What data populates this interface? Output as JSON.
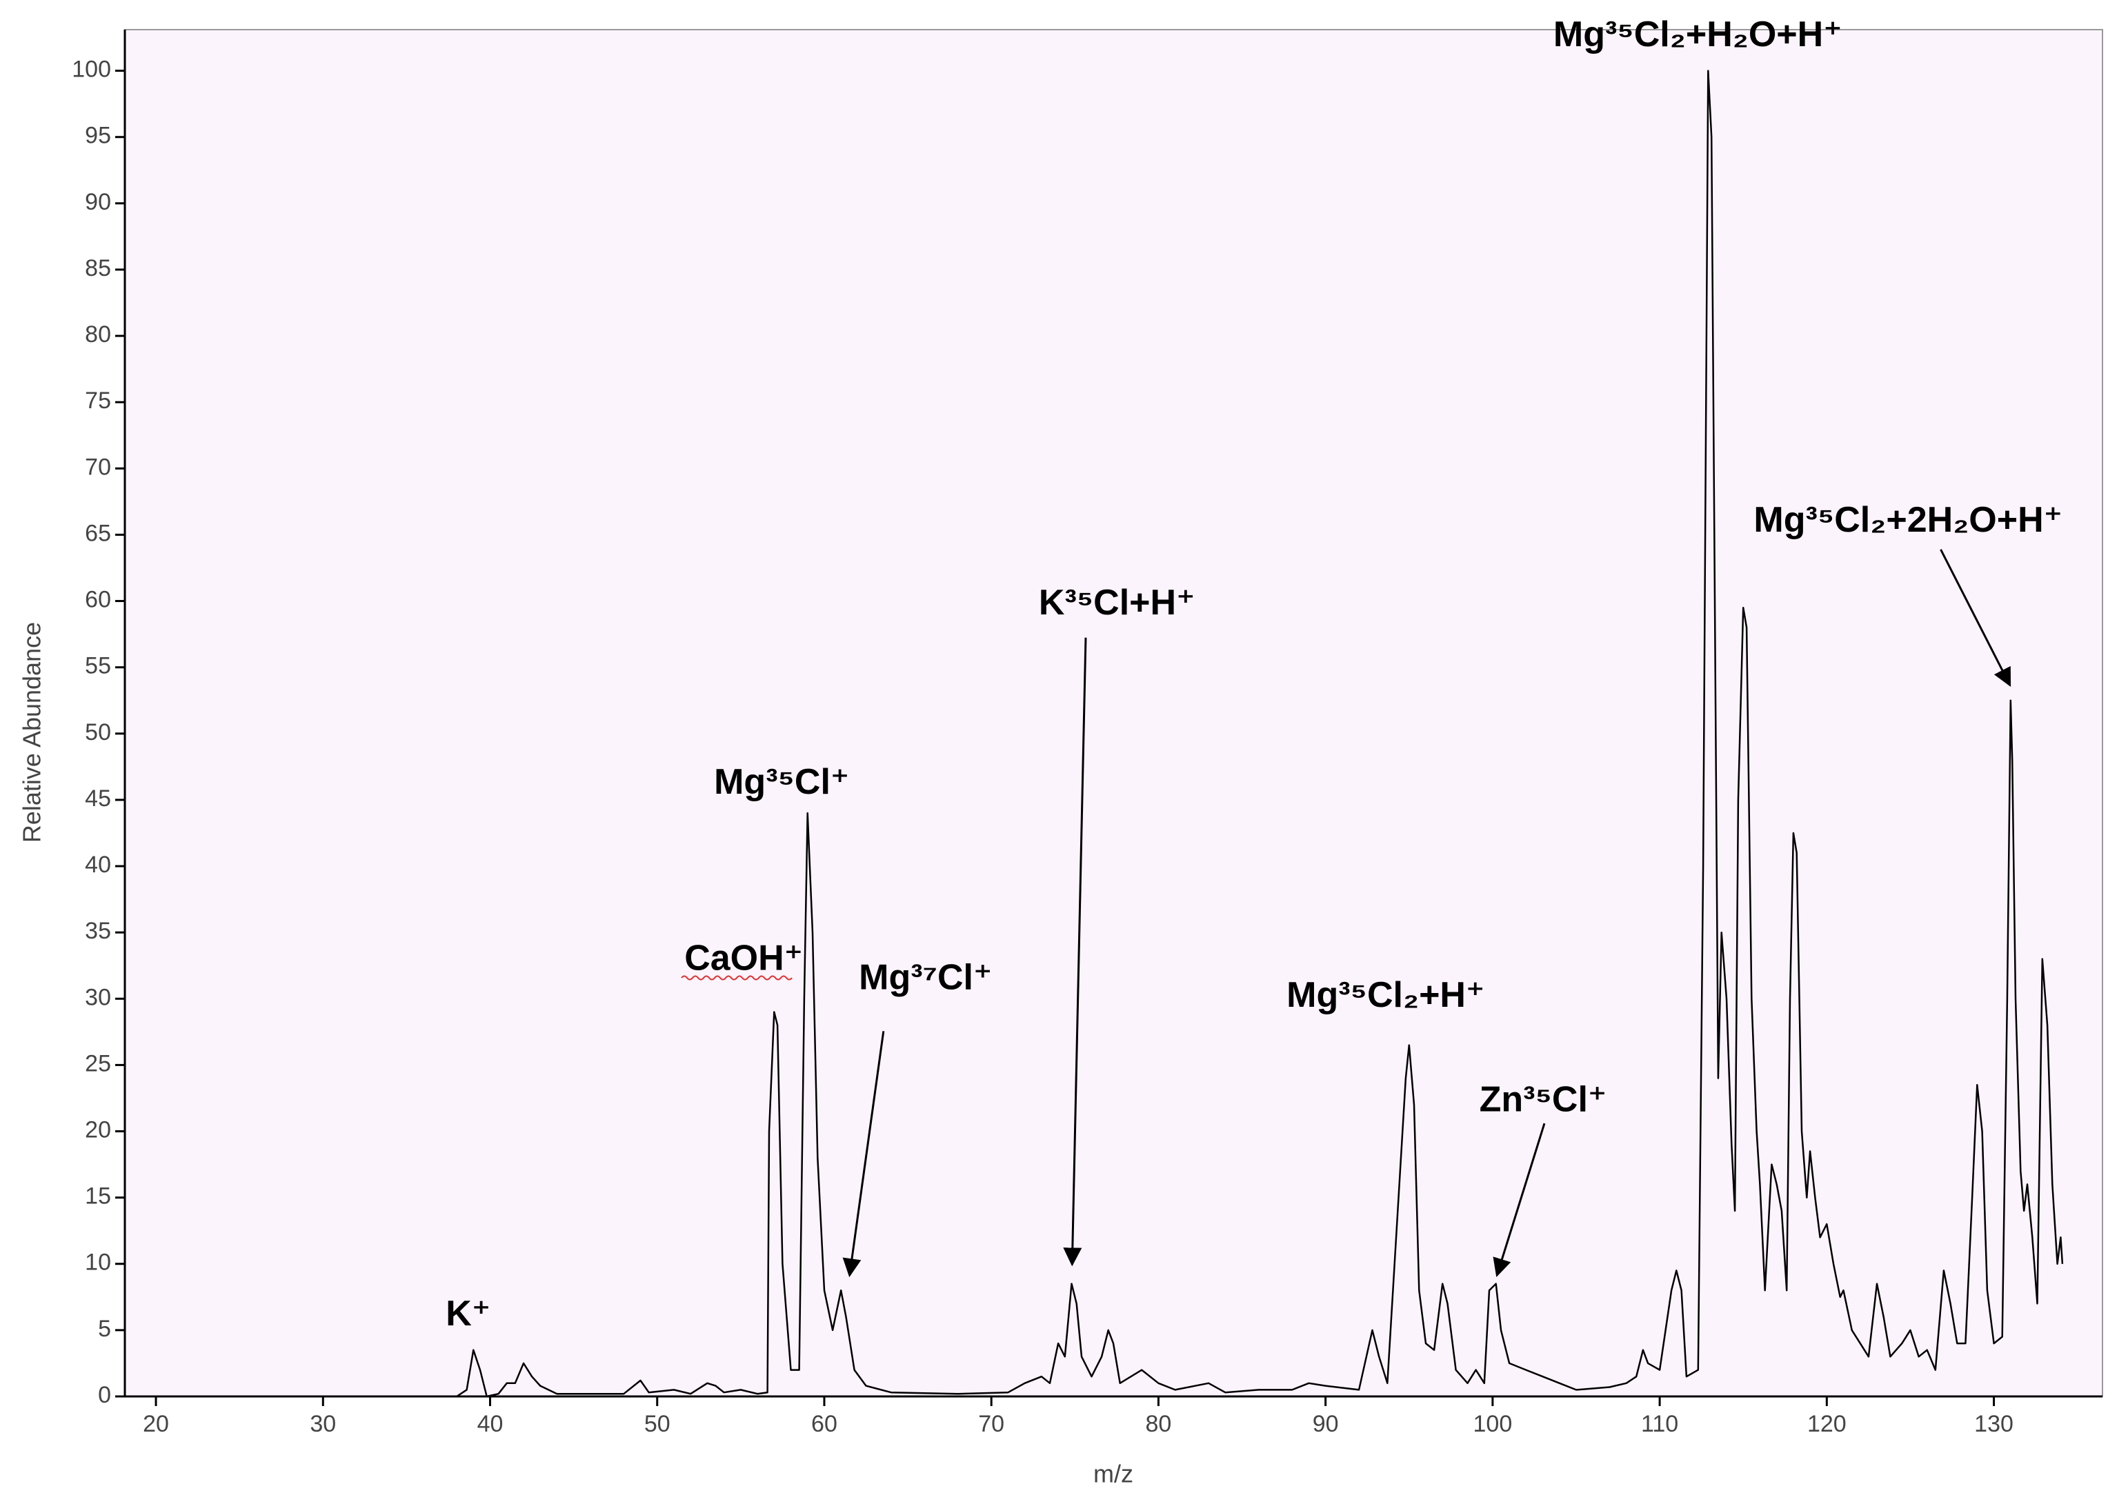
{
  "chart_data": {
    "type": "line",
    "x_label": "m/z",
    "y_label": "Relative Abundance",
    "xlim": [
      18.14,
      136.5
    ],
    "ylim": [
      0,
      103.1
    ],
    "xticks": [
      20,
      30,
      40,
      50,
      60,
      70,
      80,
      90,
      100,
      110,
      120,
      130
    ],
    "yticks": [
      0,
      5,
      10,
      15,
      20,
      25,
      30,
      35,
      40,
      45,
      50,
      55,
      60,
      65,
      70,
      75,
      80,
      85,
      90,
      95,
      100
    ],
    "color": "#000000",
    "background": "#fcf4fc",
    "x": [
      18.5,
      38,
      38.6,
      39,
      39.4,
      39.8,
      40.5,
      41,
      41.5,
      42,
      42.5,
      43,
      44,
      48,
      49,
      49.5,
      51,
      52,
      53,
      53.5,
      54,
      55,
      56,
      56.6,
      56.7,
      57,
      57.2,
      57.5,
      58,
      58.5,
      58.8,
      59,
      59.3,
      59.6,
      60,
      60.5,
      61,
      61.3,
      61.8,
      62.5,
      64,
      68,
      71,
      72,
      73,
      73.5,
      74,
      74.4,
      74.8,
      75.1,
      75.4,
      76,
      76.6,
      77,
      77.3,
      77.7,
      79,
      80,
      81,
      83,
      84,
      86,
      88,
      89,
      90,
      92,
      92.8,
      93.2,
      93.7,
      94.8,
      95,
      95.3,
      95.6,
      96,
      96.5,
      97,
      97.3,
      97.8,
      98.5,
      99,
      99.5,
      99.8,
      100.2,
      100.5,
      101,
      102,
      103,
      104,
      105,
      107,
      108,
      108.6,
      109,
      109.3,
      110,
      110.7,
      111,
      111.3,
      111.6,
      112.3,
      112.6,
      112.9,
      113.1,
      113.3,
      113.5,
      113.7,
      114,
      114.3,
      114.5,
      114.7,
      115,
      115.2,
      115.5,
      115.8,
      116,
      116.3,
      116.7,
      117,
      117.3,
      117.6,
      117.8,
      118,
      118.2,
      118.5,
      118.8,
      119,
      119.3,
      119.6,
      120,
      120.4,
      120.8,
      121,
      121.5,
      122,
      122.5,
      123,
      123.4,
      123.8,
      124.5,
      125,
      125.5,
      126,
      126.5,
      127,
      127.4,
      127.8,
      128.3,
      128.7,
      129,
      129.3,
      129.6,
      130,
      130.5,
      130.8,
      131,
      131.1,
      131.3,
      131.6,
      131.8,
      132,
      132.3,
      132.6,
      132.9,
      133.2,
      133.5,
      133.8,
      134,
      134.1
    ],
    "values": [
      0,
      0,
      0.5,
      3.5,
      2,
      0,
      0.2,
      1,
      1,
      2.5,
      1.5,
      0.8,
      0.2,
      0.2,
      1.2,
      0.3,
      0.5,
      0.2,
      1,
      0.8,
      0.3,
      0.5,
      0.2,
      0.3,
      20,
      29,
      28,
      10,
      2,
      2,
      30,
      44,
      35,
      18,
      8,
      5,
      8,
      6,
      2,
      0.8,
      0.3,
      0.2,
      0.3,
      1,
      1.5,
      1,
      4,
      3,
      8.5,
      7,
      3,
      1.5,
      3,
      5,
      4,
      1,
      2,
      1,
      0.5,
      1,
      0.3,
      0.5,
      0.5,
      1,
      0.8,
      0.5,
      5,
      3,
      1,
      24,
      26.5,
      22,
      8,
      4,
      3.5,
      8.5,
      7,
      2,
      1,
      2,
      1,
      8,
      8.5,
      5,
      2.5,
      2,
      1.5,
      1,
      0.5,
      0.7,
      1,
      1.5,
      3.5,
      2.5,
      2,
      8,
      9.5,
      8,
      1.5,
      2,
      40,
      100,
      95,
      60,
      24,
      35,
      30,
      19,
      14,
      45,
      59.5,
      58,
      30,
      20,
      16,
      8,
      17.5,
      16,
      14,
      8,
      30,
      42.5,
      41,
      20,
      15,
      18.5,
      15,
      12,
      13,
      10,
      7.5,
      8,
      5,
      4,
      3,
      8.5,
      6,
      3,
      4,
      5,
      3,
      3.5,
      2,
      9.5,
      7,
      4,
      4,
      15,
      23.5,
      20,
      8,
      4,
      4.5,
      30,
      52.5,
      48,
      30,
      17,
      14,
      16,
      12,
      7,
      33,
      28,
      16,
      10,
      12,
      10
    ],
    "annotations": [
      "K⁺",
      "CaOH⁺",
      "Mg³⁵Cl⁺",
      "Mg³⁷Cl⁺",
      "K³⁵Cl+H⁺",
      "Mg³⁵Cl₂+H⁺",
      "Zn³⁵Cl⁺",
      "Mg³⁵Cl₂+H₂O+H⁺",
      "Mg³⁵Cl₂+2H₂O+H⁺"
    ]
  }
}
